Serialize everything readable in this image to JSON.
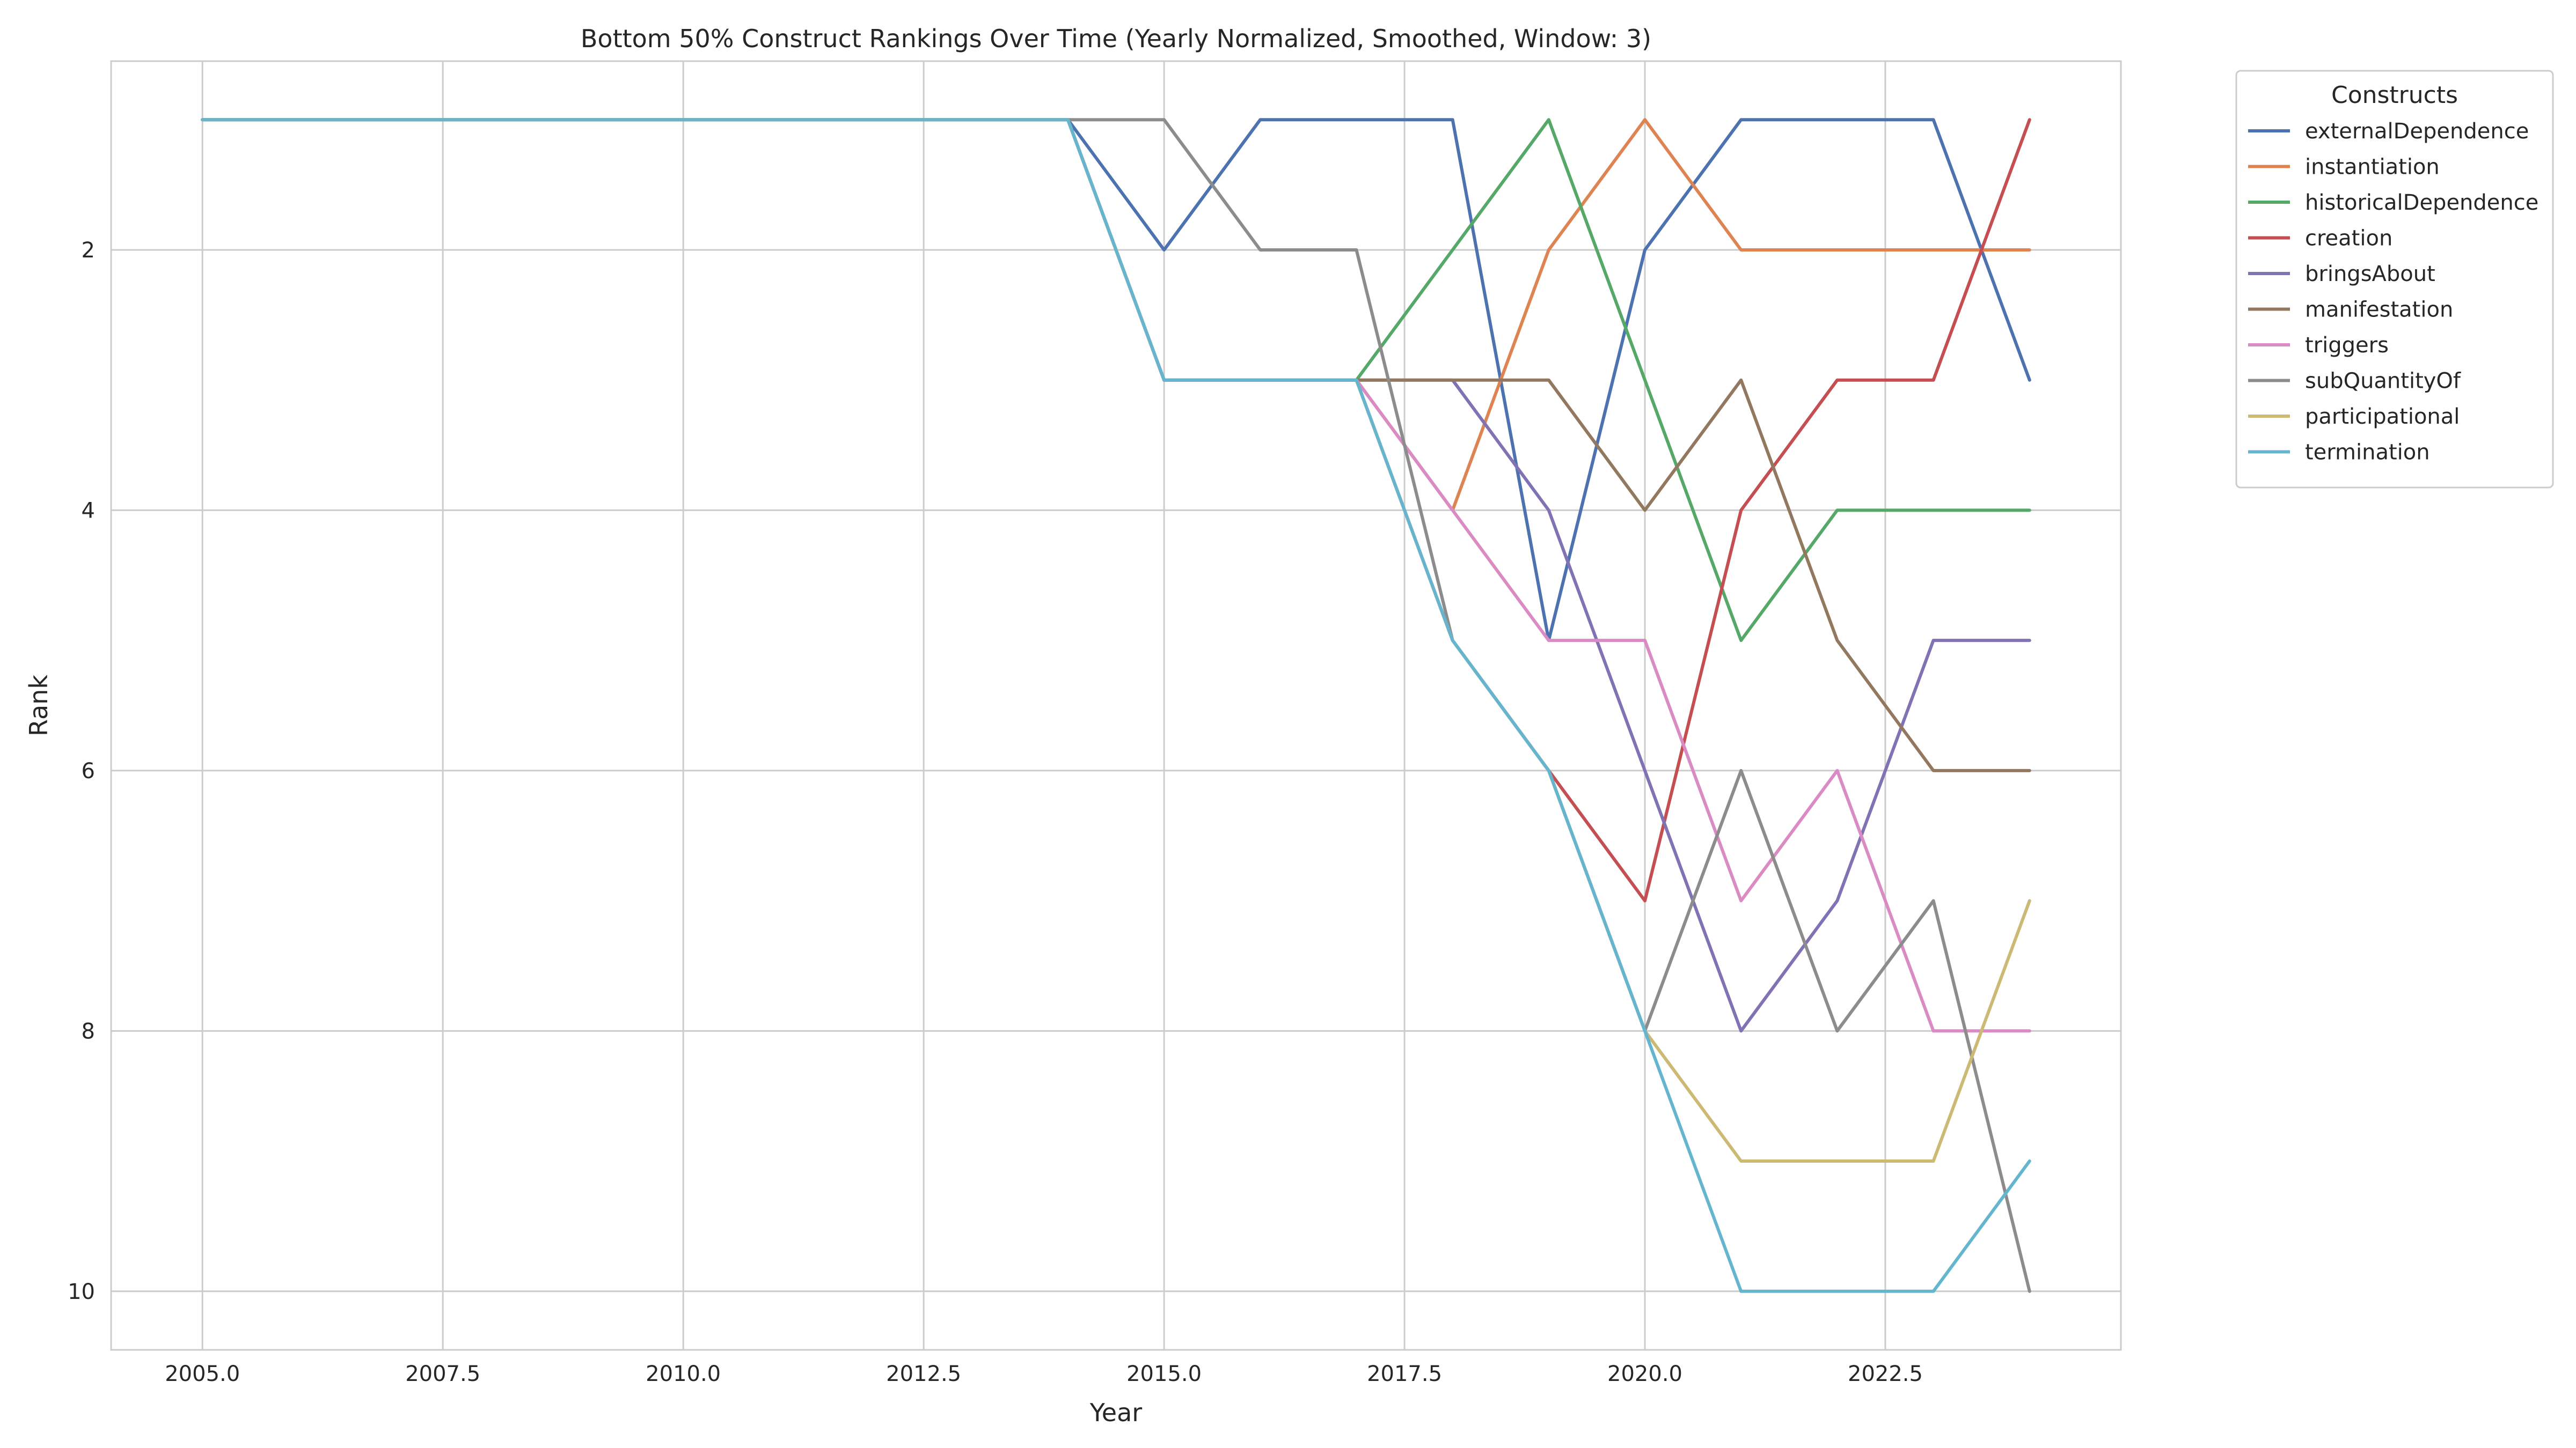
{
  "chart_data": {
    "type": "line",
    "title": "Bottom 50% Construct Rankings Over Time (Yearly Normalized, Smoothed, Window: 3)",
    "xlabel": "Year",
    "ylabel": "Rank",
    "x": [
      2005,
      2006,
      2007,
      2008,
      2009,
      2010,
      2011,
      2012,
      2013,
      2014,
      2015,
      2016,
      2017,
      2018,
      2019,
      2020,
      2021,
      2022,
      2023,
      2024
    ],
    "xlim": [
      2004.05,
      2024.95
    ],
    "ylim": [
      10.45,
      0.55
    ],
    "y_inverted": true,
    "xticks": [
      2005.0,
      2007.5,
      2010.0,
      2012.5,
      2015.0,
      2017.5,
      2020.0,
      2022.5
    ],
    "xtick_labels": [
      "2005.0",
      "2007.5",
      "2010.0",
      "2012.5",
      "2015.0",
      "2017.5",
      "2020.0",
      "2022.5"
    ],
    "yticks": [
      2,
      4,
      6,
      8,
      10
    ],
    "ytick_labels": [
      "2",
      "4",
      "6",
      "8",
      "10"
    ],
    "grid": true,
    "legend": {
      "title": "Constructs",
      "placement": "outside-top-right"
    },
    "series": [
      {
        "name": "externalDependence",
        "color": "#4c72b0",
        "values": [
          1,
          1,
          1,
          1,
          1,
          1,
          1,
          1,
          1,
          1,
          2,
          1,
          1,
          1,
          5,
          2,
          1,
          1,
          1,
          3
        ]
      },
      {
        "name": "instantiation",
        "color": "#dd8452",
        "values": [
          1,
          1,
          1,
          1,
          1,
          1,
          1,
          1,
          1,
          1,
          3,
          3,
          3,
          4,
          2,
          1,
          2,
          2,
          2,
          2
        ]
      },
      {
        "name": "historicalDependence",
        "color": "#55a868",
        "values": [
          1,
          1,
          1,
          1,
          1,
          1,
          1,
          1,
          1,
          1,
          3,
          3,
          3,
          2,
          1,
          3,
          5,
          4,
          4,
          4
        ]
      },
      {
        "name": "creation",
        "color": "#c44e52",
        "values": [
          1,
          1,
          1,
          1,
          1,
          1,
          1,
          1,
          1,
          1,
          3,
          3,
          3,
          5,
          6,
          7,
          4,
          3,
          3,
          1
        ]
      },
      {
        "name": "bringsAbout",
        "color": "#8172b3",
        "values": [
          1,
          1,
          1,
          1,
          1,
          1,
          1,
          1,
          1,
          1,
          3,
          3,
          3,
          3,
          4,
          6,
          8,
          7,
          5,
          5
        ]
      },
      {
        "name": "manifestation",
        "color": "#937860",
        "values": [
          1,
          1,
          1,
          1,
          1,
          1,
          1,
          1,
          1,
          1,
          3,
          3,
          3,
          3,
          3,
          4,
          3,
          5,
          6,
          6
        ]
      },
      {
        "name": "triggers",
        "color": "#da8bc3",
        "values": [
          1,
          1,
          1,
          1,
          1,
          1,
          1,
          1,
          1,
          1,
          3,
          3,
          3,
          4,
          5,
          5,
          7,
          6,
          8,
          8
        ]
      },
      {
        "name": "subQuantityOf",
        "color": "#8c8c8c",
        "values": [
          1,
          1,
          1,
          1,
          1,
          1,
          1,
          1,
          1,
          1,
          1,
          2,
          2,
          5,
          6,
          8,
          6,
          8,
          7,
          10
        ]
      },
      {
        "name": "participational",
        "color": "#ccb974",
        "values": [
          1,
          1,
          1,
          1,
          1,
          1,
          1,
          1,
          1,
          1,
          3,
          3,
          3,
          5,
          6,
          8,
          9,
          9,
          9,
          7
        ]
      },
      {
        "name": "termination",
        "color": "#64b5cd",
        "values": [
          1,
          1,
          1,
          1,
          1,
          1,
          1,
          1,
          1,
          1,
          3,
          3,
          3,
          5,
          6,
          8,
          10,
          10,
          10,
          9
        ]
      }
    ]
  }
}
